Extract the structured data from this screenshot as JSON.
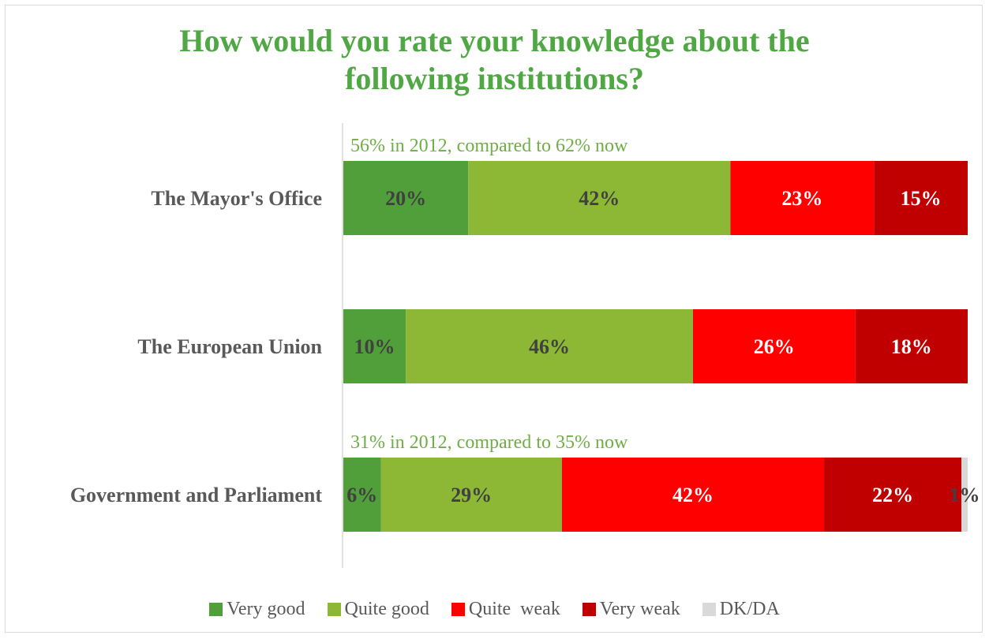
{
  "title": {
    "line1": "How would you rate your knowledge about the",
    "line2": "following institutions?"
  },
  "chart_data": {
    "type": "bar",
    "orientation": "horizontal",
    "stacked": true,
    "categories": [
      "The Mayor's Office",
      "The European Union",
      "Government and Parliament"
    ],
    "series": [
      {
        "name": "Very good",
        "color": "#519f3a",
        "label_color": "#404040",
        "values": [
          20,
          10,
          6
        ]
      },
      {
        "name": "Quite good",
        "color": "#8cb836",
        "label_color": "#404040",
        "values": [
          42,
          46,
          29
        ]
      },
      {
        "name": "Quite  weak",
        "color": "#ff0000",
        "label_color": "#ffffff",
        "values": [
          23,
          26,
          42
        ]
      },
      {
        "name": "Very weak",
        "color": "#c00000",
        "label_color": "#ffffff",
        "values": [
          15,
          18,
          22
        ]
      },
      {
        "name": "DK/DA",
        "color": "#d9d9d9",
        "label_color": "#404040",
        "values": [
          0,
          0,
          1
        ]
      }
    ],
    "value_suffix": "%",
    "xlim": [
      0,
      100
    ],
    "grid": false,
    "legend_position": "bottom",
    "annotations": [
      {
        "category": "The Mayor's Office",
        "text": "56% in 2012, compared to 62% now"
      },
      {
        "category": "Government and Parliament",
        "text": "31%  in 2012, compared to 35% now"
      }
    ]
  }
}
